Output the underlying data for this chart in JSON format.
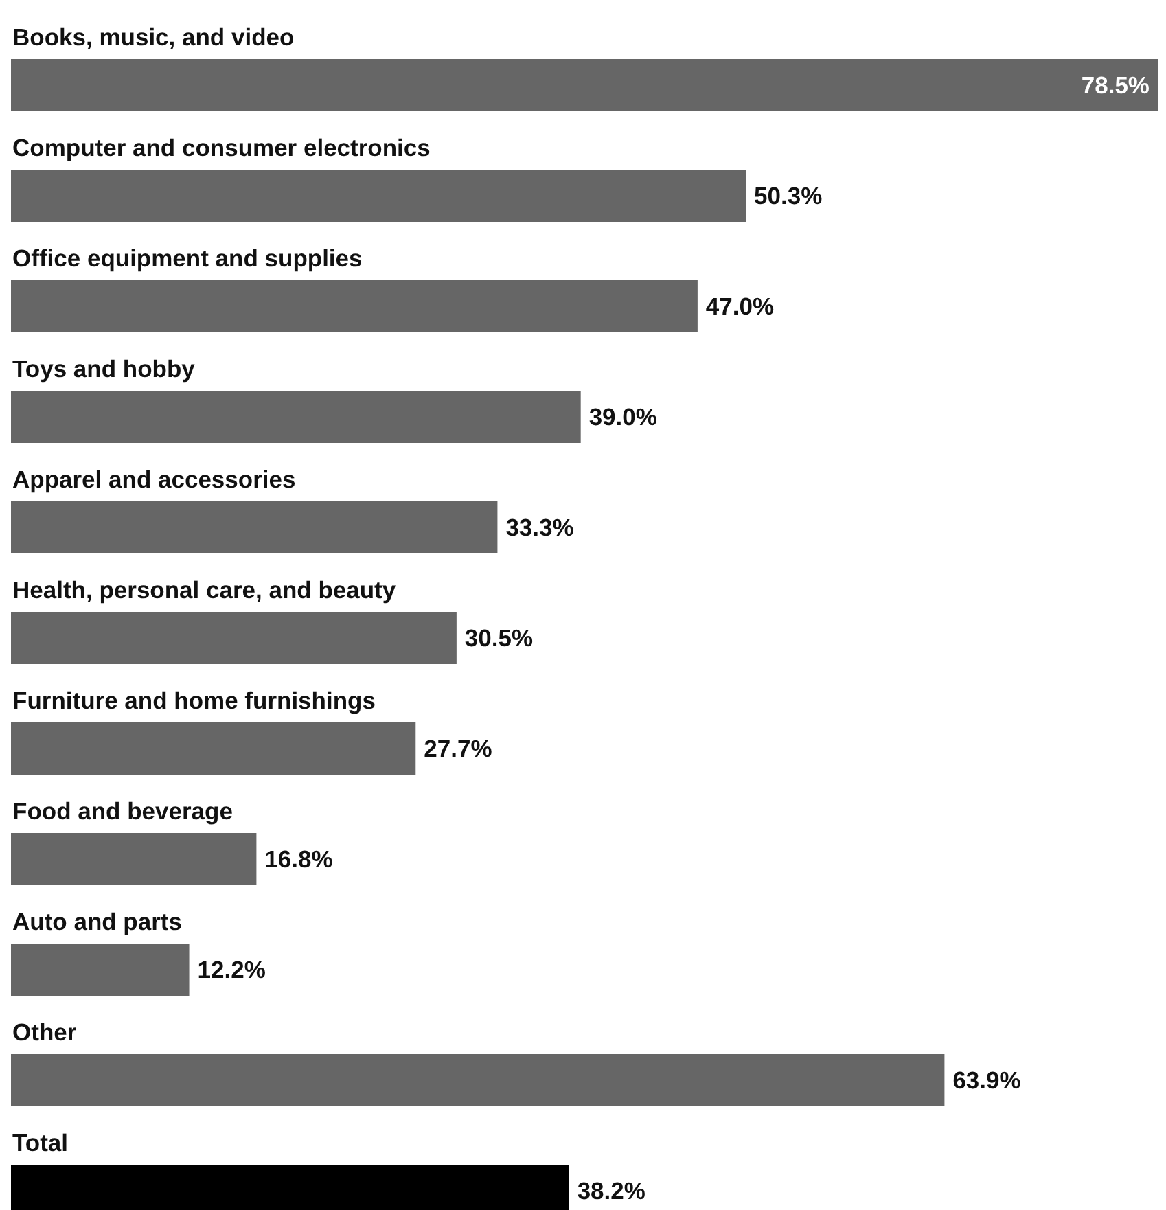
{
  "chart_data": {
    "type": "bar",
    "orientation": "horizontal",
    "categories": [
      "Books, music, and video",
      "Computer and consumer electronics",
      "Office equipment and supplies",
      "Toys and hobby",
      "Apparel and accessories",
      "Health, personal care, and beauty",
      "Furniture and home furnishings",
      "Food and beverage",
      "Auto and parts",
      "Other",
      "Total"
    ],
    "values": [
      78.5,
      50.3,
      47.0,
      39.0,
      33.3,
      30.5,
      27.7,
      16.8,
      12.2,
      63.9,
      38.2
    ],
    "value_labels": [
      "78.5%",
      "50.3%",
      "47.0%",
      "39.0%",
      "33.3%",
      "30.5%",
      "27.7%",
      "16.8%",
      "12.2%",
      "63.9%",
      "38.2%"
    ],
    "colors": [
      "#666666",
      "#666666",
      "#666666",
      "#666666",
      "#666666",
      "#666666",
      "#666666",
      "#666666",
      "#666666",
      "#666666",
      "#000000"
    ],
    "data_labels": true
  }
}
